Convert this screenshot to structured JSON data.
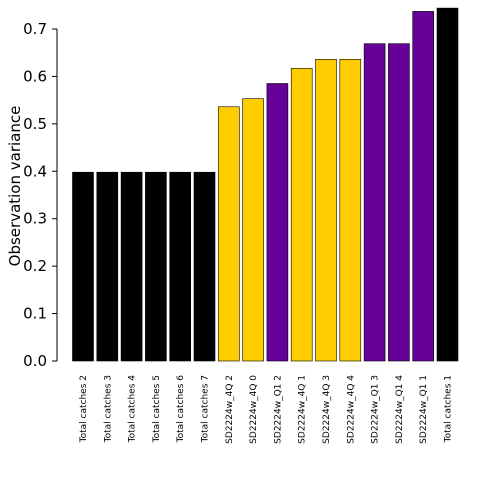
{
  "chart_data": {
    "type": "bar",
    "ylabel": "Observation variance",
    "xlabel": "",
    "ylim": [
      0,
      0.74
    ],
    "yticks": [
      "0.0",
      "0.1",
      "0.2",
      "0.3",
      "0.4",
      "0.5",
      "0.6",
      "0.7"
    ],
    "categories": [
      "Total catches 2",
      "Total catches 3",
      "Total catches 4",
      "Total catches 5",
      "Total catches 6",
      "Total catches 7",
      "SD2224w_4Q 2",
      "SD2224w_4Q 0",
      "SD2224w_Q1 2",
      "SD2224w_4Q 1",
      "SD2224w_4Q 3",
      "SD2224w_4Q 4",
      "SD2224w_Q1 3",
      "SD2224w_Q1 4",
      "SD2224w_Q1 1",
      "Total catches 1"
    ],
    "values": [
      0.398,
      0.398,
      0.398,
      0.398,
      0.398,
      0.398,
      0.536,
      0.553,
      0.585,
      0.617,
      0.636,
      0.636,
      0.669,
      0.669,
      0.737,
      0.744
    ],
    "bar_colors": [
      "#000000",
      "#000000",
      "#000000",
      "#000000",
      "#000000",
      "#000000",
      "#FFCC00",
      "#FFCC00",
      "#660099",
      "#FFCC00",
      "#FFCC00",
      "#FFCC00",
      "#660099",
      "#660099",
      "#660099",
      "#000000"
    ],
    "grid": false,
    "legend": "none"
  }
}
